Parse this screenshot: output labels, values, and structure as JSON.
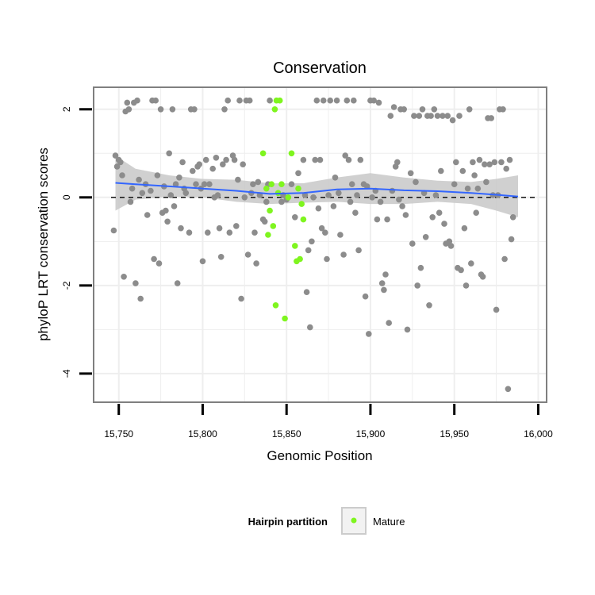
{
  "chart_data": {
    "type": "scatter",
    "title": "Conservation",
    "xlabel": "Genomic Position",
    "ylabel": "phyloP LRT conservation scores",
    "xlim": [
      15735,
      16005
    ],
    "ylim": [
      -4.65,
      2.5
    ],
    "x_ticks": [
      15750,
      15800,
      15850,
      15900,
      15950,
      16000
    ],
    "x_tick_labels": [
      "15,750",
      "15,800",
      "15,850",
      "15,900",
      "15,950",
      "16,000"
    ],
    "y_ticks": [
      -4,
      -2,
      0,
      2
    ],
    "y_tick_labels": [
      "-4",
      "-2",
      "0",
      "2"
    ],
    "grid": true,
    "reference_line": {
      "y": 0,
      "style": "dashed",
      "color": "#000000"
    },
    "legend": {
      "title": "Hairpin partition",
      "position": "bottom",
      "entries": [
        "Mature"
      ]
    },
    "colors": {
      "other_points": "#8c8c8c",
      "mature_points": "#7ff51f",
      "smooth_line": "#3366ff",
      "confidence_band": "#c8c8c8",
      "panel_background": "#ffffff",
      "panel_border": "#7f7f7f",
      "grid": "#eeeeee"
    },
    "series": [
      {
        "name": "",
        "color": "#8c8c8c",
        "points": [
          [
            15747,
            -0.75
          ],
          [
            15748,
            0.95
          ],
          [
            15749,
            0.7
          ],
          [
            15750,
            0.85
          ],
          [
            15751,
            0.8
          ],
          [
            15752,
            0.5
          ],
          [
            15753,
            -1.8
          ],
          [
            15754,
            1.95
          ],
          [
            15755,
            2.15
          ],
          [
            15756,
            2.0
          ],
          [
            15757,
            -0.1
          ],
          [
            15758,
            0.2
          ],
          [
            15759,
            2.15
          ],
          [
            15760,
            -1.95
          ],
          [
            15761,
            2.2
          ],
          [
            15762,
            0.4
          ],
          [
            15763,
            -2.3
          ],
          [
            15764,
            0.1
          ],
          [
            15766,
            0.3
          ],
          [
            15767,
            -0.4
          ],
          [
            15769,
            0.15
          ],
          [
            15770,
            2.2
          ],
          [
            15771,
            -1.4
          ],
          [
            15772,
            2.2
          ],
          [
            15773,
            0.5
          ],
          [
            15774,
            -1.5
          ],
          [
            15775,
            2.0
          ],
          [
            15776,
            -0.35
          ],
          [
            15777,
            0.25
          ],
          [
            15778,
            -0.3
          ],
          [
            15779,
            -0.55
          ],
          [
            15780,
            1.0
          ],
          [
            15781,
            0.05
          ],
          [
            15782,
            2.0
          ],
          [
            15783,
            -0.2
          ],
          [
            15784,
            0.3
          ],
          [
            15785,
            -1.95
          ],
          [
            15786,
            0.45
          ],
          [
            15787,
            -0.7
          ],
          [
            15788,
            0.8
          ],
          [
            15789,
            0.2
          ],
          [
            15790,
            0.1
          ],
          [
            15792,
            -0.8
          ],
          [
            15793,
            2.0
          ],
          [
            15794,
            0.6
          ],
          [
            15795,
            2.0
          ],
          [
            15796,
            0.3
          ],
          [
            15797,
            0.7
          ],
          [
            15798,
            0.75
          ],
          [
            15799,
            0.2
          ],
          [
            15800,
            -1.45
          ],
          [
            15801,
            0.3
          ],
          [
            15802,
            0.85
          ],
          [
            15803,
            -0.8
          ],
          [
            15804,
            0.3
          ],
          [
            15806,
            0.65
          ],
          [
            15807,
            0.0
          ],
          [
            15808,
            0.9
          ],
          [
            15809,
            0.05
          ],
          [
            15810,
            -0.7
          ],
          [
            15811,
            -1.35
          ],
          [
            15812,
            0.75
          ],
          [
            15813,
            2.0
          ],
          [
            15814,
            0.85
          ],
          [
            15815,
            2.2
          ],
          [
            15816,
            -0.8
          ],
          [
            15818,
            0.95
          ],
          [
            15819,
            0.85
          ],
          [
            15820,
            -0.65
          ],
          [
            15821,
            0.4
          ],
          [
            15822,
            2.2
          ],
          [
            15823,
            -2.3
          ],
          [
            15824,
            0.75
          ],
          [
            15825,
            0.0
          ],
          [
            15826,
            2.2
          ],
          [
            15827,
            -1.3
          ],
          [
            15828,
            2.2
          ],
          [
            15829,
            0.1
          ],
          [
            15830,
            0.3
          ],
          [
            15831,
            -0.8
          ],
          [
            15832,
            -1.5
          ],
          [
            15833,
            0.35
          ],
          [
            15834,
            0.05
          ],
          [
            15836,
            -0.5
          ],
          [
            15837,
            -0.55
          ],
          [
            15838,
            -0.1
          ],
          [
            15839,
            0.3
          ],
          [
            15840,
            2.2
          ],
          [
            15847,
            -0.1
          ],
          [
            15848,
            0.05
          ],
          [
            15850,
            -0.05
          ],
          [
            15853,
            0.3
          ],
          [
            15855,
            -0.45
          ],
          [
            15857,
            0.55
          ],
          [
            15860,
            0.85
          ],
          [
            15861,
            0.05
          ],
          [
            15862,
            -2.15
          ],
          [
            15863,
            -1.2
          ],
          [
            15864,
            -2.95
          ],
          [
            15865,
            -1.0
          ],
          [
            15866,
            0.0
          ],
          [
            15867,
            0.85
          ],
          [
            15868,
            2.2
          ],
          [
            15869,
            -0.25
          ],
          [
            15870,
            0.85
          ],
          [
            15871,
            -0.7
          ],
          [
            15872,
            2.2
          ],
          [
            15873,
            -0.8
          ],
          [
            15874,
            -1.4
          ],
          [
            15875,
            0.05
          ],
          [
            15876,
            2.2
          ],
          [
            15878,
            -0.2
          ],
          [
            15879,
            0.45
          ],
          [
            15880,
            2.2
          ],
          [
            15881,
            0.1
          ],
          [
            15882,
            -0.85
          ],
          [
            15884,
            -1.3
          ],
          [
            15885,
            0.95
          ],
          [
            15886,
            2.2
          ],
          [
            15887,
            0.85
          ],
          [
            15888,
            -0.1
          ],
          [
            15889,
            0.3
          ],
          [
            15890,
            2.2
          ],
          [
            15891,
            -0.35
          ],
          [
            15892,
            0.05
          ],
          [
            15893,
            -1.2
          ],
          [
            15894,
            0.85
          ],
          [
            15896,
            0.3
          ],
          [
            15897,
            -2.25
          ],
          [
            15898,
            0.25
          ],
          [
            15899,
            -3.1
          ],
          [
            15900,
            2.2
          ],
          [
            15901,
            0.0
          ],
          [
            15902,
            2.2
          ],
          [
            15903,
            0.15
          ],
          [
            15904,
            -0.5
          ],
          [
            15905,
            2.15
          ],
          [
            15906,
            -0.1
          ],
          [
            15907,
            -1.95
          ],
          [
            15908,
            -2.1
          ],
          [
            15909,
            -1.75
          ],
          [
            15910,
            -0.5
          ],
          [
            15911,
            -2.85
          ],
          [
            15912,
            1.85
          ],
          [
            15913,
            0.15
          ],
          [
            15914,
            2.05
          ],
          [
            15915,
            0.7
          ],
          [
            15916,
            0.8
          ],
          [
            15917,
            -0.05
          ],
          [
            15918,
            2.0
          ],
          [
            15919,
            -0.2
          ],
          [
            15920,
            2.0
          ],
          [
            15921,
            -0.4
          ],
          [
            15922,
            -3.0
          ],
          [
            15924,
            0.55
          ],
          [
            15925,
            -1.05
          ],
          [
            15926,
            1.85
          ],
          [
            15927,
            0.35
          ],
          [
            15928,
            -2.0
          ],
          [
            15929,
            1.85
          ],
          [
            15930,
            -1.6
          ],
          [
            15931,
            2.0
          ],
          [
            15932,
            0.1
          ],
          [
            15933,
            -0.9
          ],
          [
            15934,
            1.85
          ],
          [
            15935,
            -2.45
          ],
          [
            15936,
            1.85
          ],
          [
            15937,
            -0.45
          ],
          [
            15938,
            2.0
          ],
          [
            15939,
            0.05
          ],
          [
            15940,
            1.85
          ],
          [
            15941,
            -0.35
          ],
          [
            15942,
            0.6
          ],
          [
            15943,
            1.85
          ],
          [
            15944,
            -0.6
          ],
          [
            15945,
            -1.05
          ],
          [
            15946,
            1.85
          ],
          [
            15947,
            -1.0
          ],
          [
            15948,
            -1.1
          ],
          [
            15949,
            1.75
          ],
          [
            15950,
            0.3
          ],
          [
            15951,
            0.8
          ],
          [
            15952,
            -1.6
          ],
          [
            15953,
            1.85
          ],
          [
            15954,
            -1.65
          ],
          [
            15955,
            0.6
          ],
          [
            15956,
            -0.7
          ],
          [
            15957,
            -2.0
          ],
          [
            15958,
            0.2
          ],
          [
            15959,
            2.0
          ],
          [
            15960,
            -1.5
          ],
          [
            15961,
            0.8
          ],
          [
            15962,
            0.5
          ],
          [
            15963,
            -0.35
          ],
          [
            15964,
            0.2
          ],
          [
            15965,
            0.85
          ],
          [
            15966,
            -1.75
          ],
          [
            15967,
            -1.8
          ],
          [
            15968,
            0.75
          ],
          [
            15969,
            0.35
          ],
          [
            15970,
            1.8
          ],
          [
            15971,
            0.75
          ],
          [
            15972,
            1.8
          ],
          [
            15973,
            0.05
          ],
          [
            15974,
            0.8
          ],
          [
            15975,
            -2.55
          ],
          [
            15976,
            0.05
          ],
          [
            15977,
            2.0
          ],
          [
            15978,
            0.8
          ],
          [
            15979,
            2.0
          ],
          [
            15980,
            -1.4
          ],
          [
            15981,
            0.65
          ],
          [
            15982,
            -4.35
          ],
          [
            15983,
            0.85
          ],
          [
            15984,
            -0.95
          ],
          [
            15985,
            -0.45
          ]
        ]
      },
      {
        "name": "Mature",
        "color": "#7ff51f",
        "points": [
          [
            15836,
            1.0
          ],
          [
            15838,
            0.2
          ],
          [
            15839,
            -0.85
          ],
          [
            15840,
            -0.3
          ],
          [
            15841,
            0.3
          ],
          [
            15842,
            -0.65
          ],
          [
            15843,
            2.0
          ],
          [
            15843.5,
            -2.45
          ],
          [
            15844,
            2.2
          ],
          [
            15845,
            0.1
          ],
          [
            15846,
            2.2
          ],
          [
            15847,
            0.3
          ],
          [
            15849,
            -2.75
          ],
          [
            15851,
            0.0
          ],
          [
            15853,
            1.0
          ],
          [
            15855,
            -1.1
          ],
          [
            15856,
            -1.45
          ],
          [
            15857,
            0.2
          ],
          [
            15858,
            -1.4
          ],
          [
            15859,
            -0.15
          ],
          [
            15860,
            -0.5
          ]
        ]
      }
    ],
    "smooth": {
      "x": [
        15748,
        15760,
        15780,
        15800,
        15820,
        15840,
        15860,
        15880,
        15900,
        15920,
        15940,
        15960,
        15975,
        15988
      ],
      "y": [
        0.33,
        0.3,
        0.25,
        0.2,
        0.15,
        0.08,
        0.1,
        0.18,
        0.2,
        0.16,
        0.14,
        0.1,
        0.06,
        0.02
      ],
      "lower": [
        -0.3,
        -0.05,
        0.02,
        0.0,
        -0.1,
        -0.15,
        -0.12,
        -0.1,
        -0.15,
        -0.15,
        -0.1,
        -0.15,
        -0.3,
        -0.45
      ],
      "upper": [
        0.95,
        0.65,
        0.5,
        0.42,
        0.4,
        0.32,
        0.32,
        0.45,
        0.55,
        0.45,
        0.38,
        0.35,
        0.42,
        0.5
      ]
    }
  }
}
